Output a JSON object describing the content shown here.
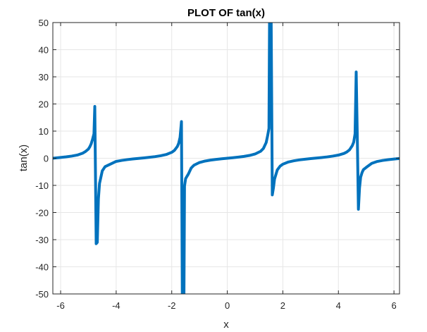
{
  "chart_data": {
    "type": "line",
    "title": "PLOT OF tan(x)",
    "xlabel": "x",
    "ylabel": "tan(x)",
    "xlim": [
      -6.28,
      6.2
    ],
    "ylim": [
      -50,
      50
    ],
    "xticks": [
      -6,
      -4,
      -2,
      0,
      2,
      4,
      6
    ],
    "yticks": [
      -50,
      -40,
      -30,
      -20,
      -10,
      0,
      10,
      20,
      30,
      40,
      50
    ],
    "xtick_labels": [
      "-6",
      "-4",
      "-2",
      "0",
      "2",
      "4",
      "6"
    ],
    "ytick_labels": [
      "-50",
      "-40",
      "-30",
      "-20",
      "-10",
      "0",
      "10",
      "20",
      "30",
      "40",
      "50"
    ],
    "grid": true,
    "line_color": "#0072BD",
    "series": [
      {
        "function": "tan(x)",
        "x": [
          -6.28,
          -6.0,
          -5.8,
          -5.6,
          -5.4,
          -5.2,
          -5.1,
          -5.0,
          -4.95,
          -4.9,
          -4.85,
          -4.8,
          -4.77,
          -4.72,
          -4.68,
          -4.64,
          -4.6,
          -4.5,
          -4.4,
          -4.2,
          -4.0,
          -3.8,
          -3.6,
          -3.4,
          -3.2,
          -3.0,
          -2.8,
          -2.6,
          -2.4,
          -2.2,
          -2.0,
          -1.9,
          -1.8,
          -1.75,
          -1.7,
          -1.65,
          -1.62,
          -1.58,
          -1.56,
          -1.54,
          -1.5,
          -1.4,
          -1.3,
          -1.2,
          -1.0,
          -0.8,
          -0.6,
          -0.4,
          -0.2,
          0.0,
          0.2,
          0.4,
          0.6,
          0.8,
          1.0,
          1.2,
          1.3,
          1.4,
          1.45,
          1.5,
          1.52,
          1.55,
          1.58,
          1.62,
          1.66,
          1.7,
          1.8,
          1.9,
          2.0,
          2.2,
          2.4,
          2.6,
          2.8,
          3.0,
          3.2,
          3.4,
          3.6,
          3.8,
          4.0,
          4.2,
          4.3,
          4.4,
          4.5,
          4.55,
          4.6,
          4.64,
          4.68,
          4.72,
          4.76,
          4.8,
          4.85,
          4.9,
          5.0,
          5.2,
          5.4,
          5.6,
          5.8,
          6.0,
          6.2
        ],
        "y": [
          0.0,
          0.29,
          0.52,
          0.8,
          1.18,
          1.89,
          2.53,
          3.38,
          4.2,
          5.3,
          7.0,
          9.0,
          19.1,
          -31.5,
          -31.0,
          -15.0,
          -9.3,
          -4.64,
          -3.1,
          -2.14,
          -1.16,
          -0.8,
          -0.5,
          -0.26,
          -0.06,
          0.14,
          0.36,
          0.6,
          0.92,
          1.37,
          2.19,
          2.93,
          4.29,
          5.52,
          7.7,
          13.5,
          -50.0,
          -50.0,
          -50.0,
          -10.2,
          -7.5,
          -5.8,
          -3.6,
          -2.57,
          -1.56,
          -1.03,
          -0.68,
          -0.42,
          -0.2,
          0.0,
          0.2,
          0.42,
          0.68,
          1.03,
          1.56,
          2.57,
          3.6,
          5.8,
          8.2,
          11.0,
          50.0,
          50.0,
          50.0,
          -13.5,
          -11.0,
          -7.7,
          -4.29,
          -2.93,
          -2.19,
          -1.37,
          -0.92,
          -0.6,
          -0.36,
          -0.14,
          0.06,
          0.26,
          0.5,
          0.8,
          1.16,
          1.78,
          2.29,
          3.1,
          4.64,
          5.9,
          9.0,
          31.8,
          8.0,
          -18.8,
          -11.0,
          -7.0,
          -5.3,
          -4.2,
          -3.38,
          -1.89,
          -1.18,
          -0.8,
          -0.52,
          -0.29,
          -0.08
        ]
      }
    ]
  }
}
